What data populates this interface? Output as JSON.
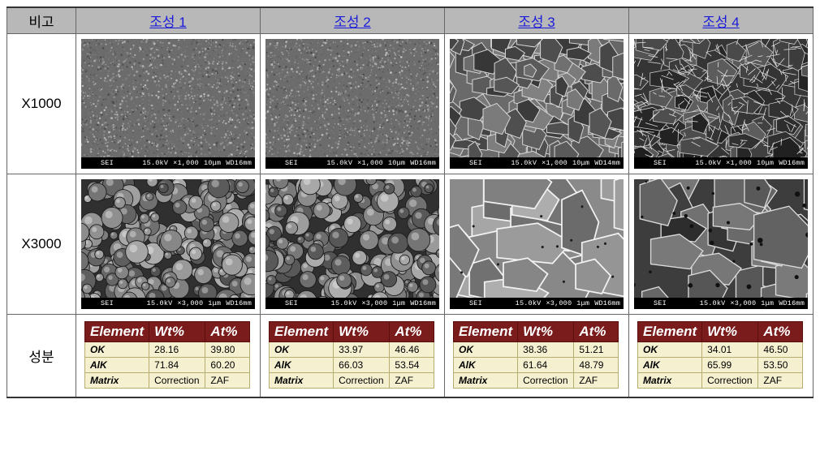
{
  "header": {
    "rowhead": "비고",
    "cols": [
      "조성 1",
      "조성 2",
      "조성 3",
      "조성 4"
    ]
  },
  "rows": {
    "r0": "X1000",
    "r1": "X3000",
    "r2": "성분"
  },
  "sem": {
    "barColor": "#000000",
    "textColor": "#ffffff",
    "label_sei": "SEI",
    "kv": "15.0kV",
    "r0": {
      "mag": "×1,000",
      "scale": "10μm",
      "wd": [
        "WD16mm",
        "WD16mm",
        "WD14mm",
        "WD16mm"
      ],
      "texture": [
        "fine",
        "fine",
        "coarse",
        "coarse-dark"
      ]
    },
    "r1": {
      "mag": "×3,000",
      "scale": "1μm",
      "wd": [
        "WD16mm",
        "WD16mm",
        "WD16mm",
        "WD16mm"
      ],
      "texture": [
        "globular",
        "globular",
        "facet",
        "facet-dark"
      ]
    }
  },
  "etable": {
    "headers": [
      "Element",
      "Wt%",
      "At%"
    ],
    "row_labels": [
      "OK",
      "AlK",
      "Matrix"
    ],
    "matrix_row": [
      "Correction",
      "ZAF"
    ],
    "comp": [
      {
        "OK": [
          "28.16",
          "39.80"
        ],
        "AlK": [
          "71.84",
          "60.20"
        ]
      },
      {
        "OK": [
          "33.97",
          "46.46"
        ],
        "AlK": [
          "66.03",
          "53.54"
        ]
      },
      {
        "OK": [
          "38.36",
          "51.21"
        ],
        "AlK": [
          "61.64",
          "48.79"
        ]
      },
      {
        "OK": [
          "34.01",
          "46.50"
        ],
        "AlK": [
          "65.99",
          "53.50"
        ]
      }
    ]
  },
  "style": {
    "header_bg": "#b9b8b8",
    "header_underline_color": "#1a1adb",
    "etab_header_bg": "#7a1c1c",
    "etab_cell_bg": "#f5f0d0",
    "border_color": "#666666"
  }
}
